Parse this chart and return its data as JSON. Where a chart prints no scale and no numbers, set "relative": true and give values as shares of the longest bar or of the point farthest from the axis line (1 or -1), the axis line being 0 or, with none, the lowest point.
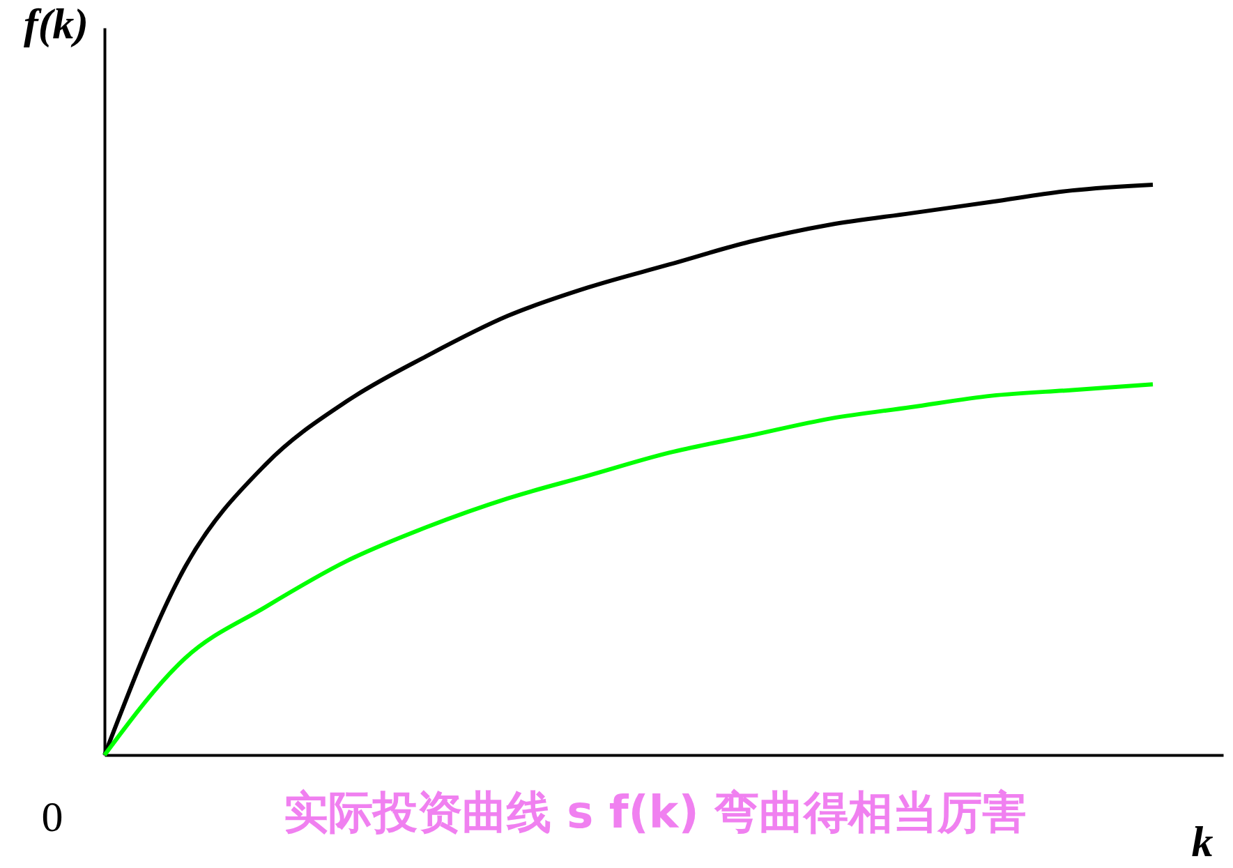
{
  "chart_data": {
    "type": "line",
    "relative": true,
    "xlabel": "k",
    "ylabel": "f(k)",
    "categories": [
      null,
      null,
      null,
      null,
      null,
      null,
      null,
      null,
      null,
      null,
      null,
      null,
      null,
      null
    ],
    "series": [
      {
        "color": "#000000",
        "values": [
          0,
          0.33,
          0.51,
          0.62,
          0.7,
          0.77,
          0.82,
          0.86,
          0.9,
          0.93,
          0.95,
          0.97,
          0.99,
          1
        ]
      },
      {
        "color": "#00ff00",
        "values": [
          0,
          0.17,
          0.26,
          0.34,
          0.4,
          0.45,
          0.49,
          0.53,
          0.56,
          0.59,
          0.61,
          0.63,
          0.64,
          0.65
        ]
      }
    ],
    "annotations": [
      "0",
      "实际投资曲线 s f(k) 弯曲得相当厉害"
    ],
    "marker": "none",
    "line_style": "solid",
    "grid": false,
    "legend": false
  }
}
